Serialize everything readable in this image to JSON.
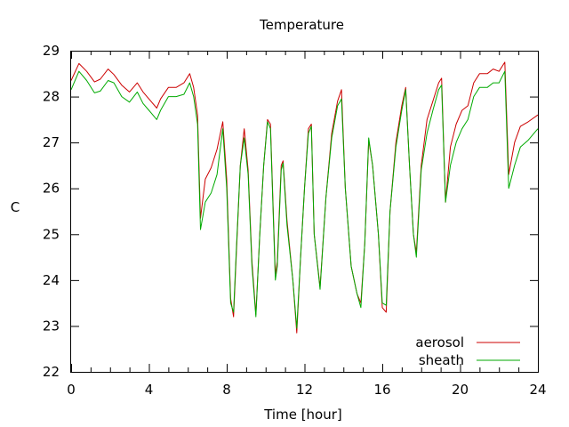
{
  "chart_data": {
    "type": "line",
    "title": "Temperature",
    "xlabel": "Time [hour]",
    "ylabel": "C",
    "xlim": [
      0,
      24
    ],
    "ylim": [
      22,
      29
    ],
    "xticks": [
      0,
      4,
      8,
      12,
      16,
      20,
      24
    ],
    "yticks": [
      22,
      23,
      24,
      25,
      26,
      27,
      28,
      29
    ],
    "grid": false,
    "legend_position": "bottom-right",
    "series": [
      {
        "name": "aerosol",
        "color": "#cc0000",
        "points": [
          [
            0,
            28.35
          ],
          [
            0.4,
            28.72
          ],
          [
            0.8,
            28.55
          ],
          [
            1.2,
            28.32
          ],
          [
            1.5,
            28.38
          ],
          [
            1.9,
            28.6
          ],
          [
            2.2,
            28.48
          ],
          [
            2.6,
            28.25
          ],
          [
            3.0,
            28.1
          ],
          [
            3.4,
            28.3
          ],
          [
            3.7,
            28.1
          ],
          [
            4.0,
            27.95
          ],
          [
            4.4,
            27.75
          ],
          [
            4.6,
            27.95
          ],
          [
            5.0,
            28.2
          ],
          [
            5.4,
            28.2
          ],
          [
            5.8,
            28.3
          ],
          [
            6.1,
            28.5
          ],
          [
            6.3,
            28.2
          ],
          [
            6.5,
            27.6
          ],
          [
            6.65,
            25.35
          ],
          [
            6.9,
            26.2
          ],
          [
            7.2,
            26.45
          ],
          [
            7.5,
            26.85
          ],
          [
            7.8,
            27.45
          ],
          [
            8.0,
            26.2
          ],
          [
            8.2,
            23.6
          ],
          [
            8.35,
            23.2
          ],
          [
            8.5,
            24.6
          ],
          [
            8.7,
            26.5
          ],
          [
            8.9,
            27.3
          ],
          [
            9.1,
            26.4
          ],
          [
            9.3,
            24.4
          ],
          [
            9.5,
            23.25
          ],
          [
            9.7,
            25.0
          ],
          [
            9.9,
            26.5
          ],
          [
            10.1,
            27.5
          ],
          [
            10.25,
            27.4
          ],
          [
            10.5,
            24.1
          ],
          [
            10.6,
            24.4
          ],
          [
            10.8,
            26.5
          ],
          [
            10.9,
            26.6
          ],
          [
            11.1,
            25.3
          ],
          [
            11.4,
            24.0
          ],
          [
            11.6,
            22.85
          ],
          [
            11.8,
            24.5
          ],
          [
            12.0,
            26.0
          ],
          [
            12.2,
            27.3
          ],
          [
            12.35,
            27.4
          ],
          [
            12.5,
            25.0
          ],
          [
            12.8,
            23.85
          ],
          [
            13.1,
            25.8
          ],
          [
            13.4,
            27.2
          ],
          [
            13.7,
            27.9
          ],
          [
            13.9,
            28.15
          ],
          [
            14.1,
            26.0
          ],
          [
            14.4,
            24.3
          ],
          [
            14.7,
            23.7
          ],
          [
            14.9,
            23.5
          ],
          [
            15.1,
            24.8
          ],
          [
            15.3,
            27.05
          ],
          [
            15.5,
            26.5
          ],
          [
            15.8,
            25.0
          ],
          [
            16.0,
            23.4
          ],
          [
            16.2,
            23.3
          ],
          [
            16.4,
            25.5
          ],
          [
            16.7,
            27.0
          ],
          [
            17.0,
            27.8
          ],
          [
            17.2,
            28.2
          ],
          [
            17.4,
            26.5
          ],
          [
            17.6,
            25.0
          ],
          [
            17.75,
            24.6
          ],
          [
            18.0,
            26.5
          ],
          [
            18.3,
            27.5
          ],
          [
            18.6,
            27.9
          ],
          [
            18.9,
            28.3
          ],
          [
            19.05,
            28.4
          ],
          [
            19.25,
            25.7
          ],
          [
            19.5,
            26.9
          ],
          [
            19.8,
            27.4
          ],
          [
            20.1,
            27.7
          ],
          [
            20.4,
            27.8
          ],
          [
            20.7,
            28.3
          ],
          [
            21.0,
            28.5
          ],
          [
            21.4,
            28.5
          ],
          [
            21.7,
            28.6
          ],
          [
            22.0,
            28.55
          ],
          [
            22.3,
            28.75
          ],
          [
            22.5,
            26.3
          ],
          [
            22.8,
            27.0
          ],
          [
            23.1,
            27.35
          ],
          [
            23.5,
            27.45
          ],
          [
            24.0,
            27.6
          ]
        ]
      },
      {
        "name": "sheath",
        "color": "#00aa00",
        "points": [
          [
            0,
            28.15
          ],
          [
            0.4,
            28.55
          ],
          [
            0.8,
            28.35
          ],
          [
            1.2,
            28.08
          ],
          [
            1.5,
            28.12
          ],
          [
            1.9,
            28.35
          ],
          [
            2.2,
            28.3
          ],
          [
            2.6,
            28.0
          ],
          [
            3.0,
            27.88
          ],
          [
            3.4,
            28.1
          ],
          [
            3.7,
            27.85
          ],
          [
            4.0,
            27.7
          ],
          [
            4.4,
            27.5
          ],
          [
            4.6,
            27.7
          ],
          [
            5.0,
            28.0
          ],
          [
            5.4,
            28.0
          ],
          [
            5.8,
            28.05
          ],
          [
            6.1,
            28.3
          ],
          [
            6.3,
            28.0
          ],
          [
            6.5,
            27.4
          ],
          [
            6.65,
            25.1
          ],
          [
            6.9,
            25.7
          ],
          [
            7.2,
            25.9
          ],
          [
            7.5,
            26.3
          ],
          [
            7.8,
            27.3
          ],
          [
            8.0,
            26.0
          ],
          [
            8.2,
            23.5
          ],
          [
            8.35,
            23.3
          ],
          [
            8.5,
            24.7
          ],
          [
            8.7,
            26.5
          ],
          [
            8.9,
            27.1
          ],
          [
            9.1,
            26.3
          ],
          [
            9.3,
            24.3
          ],
          [
            9.5,
            23.2
          ],
          [
            9.7,
            25.0
          ],
          [
            9.9,
            26.5
          ],
          [
            10.1,
            27.45
          ],
          [
            10.25,
            27.3
          ],
          [
            10.5,
            24.0
          ],
          [
            10.6,
            24.3
          ],
          [
            10.8,
            26.4
          ],
          [
            10.9,
            26.55
          ],
          [
            11.1,
            25.2
          ],
          [
            11.4,
            24.0
          ],
          [
            11.6,
            22.95
          ],
          [
            11.8,
            24.5
          ],
          [
            12.0,
            26.0
          ],
          [
            12.2,
            27.2
          ],
          [
            12.35,
            27.35
          ],
          [
            12.5,
            25.0
          ],
          [
            12.8,
            23.8
          ],
          [
            13.1,
            25.8
          ],
          [
            13.4,
            27.1
          ],
          [
            13.7,
            27.8
          ],
          [
            13.9,
            27.95
          ],
          [
            14.1,
            26.0
          ],
          [
            14.4,
            24.3
          ],
          [
            14.7,
            23.7
          ],
          [
            14.9,
            23.4
          ],
          [
            15.1,
            24.8
          ],
          [
            15.3,
            27.1
          ],
          [
            15.5,
            26.5
          ],
          [
            15.8,
            25.0
          ],
          [
            16.0,
            23.5
          ],
          [
            16.2,
            23.45
          ],
          [
            16.4,
            25.5
          ],
          [
            16.7,
            26.9
          ],
          [
            17.0,
            27.7
          ],
          [
            17.2,
            28.15
          ],
          [
            17.4,
            26.5
          ],
          [
            17.6,
            25.0
          ],
          [
            17.75,
            24.5
          ],
          [
            18.0,
            26.4
          ],
          [
            18.3,
            27.2
          ],
          [
            18.6,
            27.7
          ],
          [
            18.9,
            28.15
          ],
          [
            19.05,
            28.25
          ],
          [
            19.25,
            25.7
          ],
          [
            19.5,
            26.5
          ],
          [
            19.8,
            27.0
          ],
          [
            20.1,
            27.3
          ],
          [
            20.4,
            27.5
          ],
          [
            20.7,
            28.0
          ],
          [
            21.0,
            28.2
          ],
          [
            21.4,
            28.2
          ],
          [
            21.7,
            28.3
          ],
          [
            22.0,
            28.3
          ],
          [
            22.3,
            28.55
          ],
          [
            22.5,
            26.0
          ],
          [
            22.8,
            26.5
          ],
          [
            23.1,
            26.9
          ],
          [
            23.5,
            27.05
          ],
          [
            24.0,
            27.3
          ]
        ]
      }
    ]
  }
}
